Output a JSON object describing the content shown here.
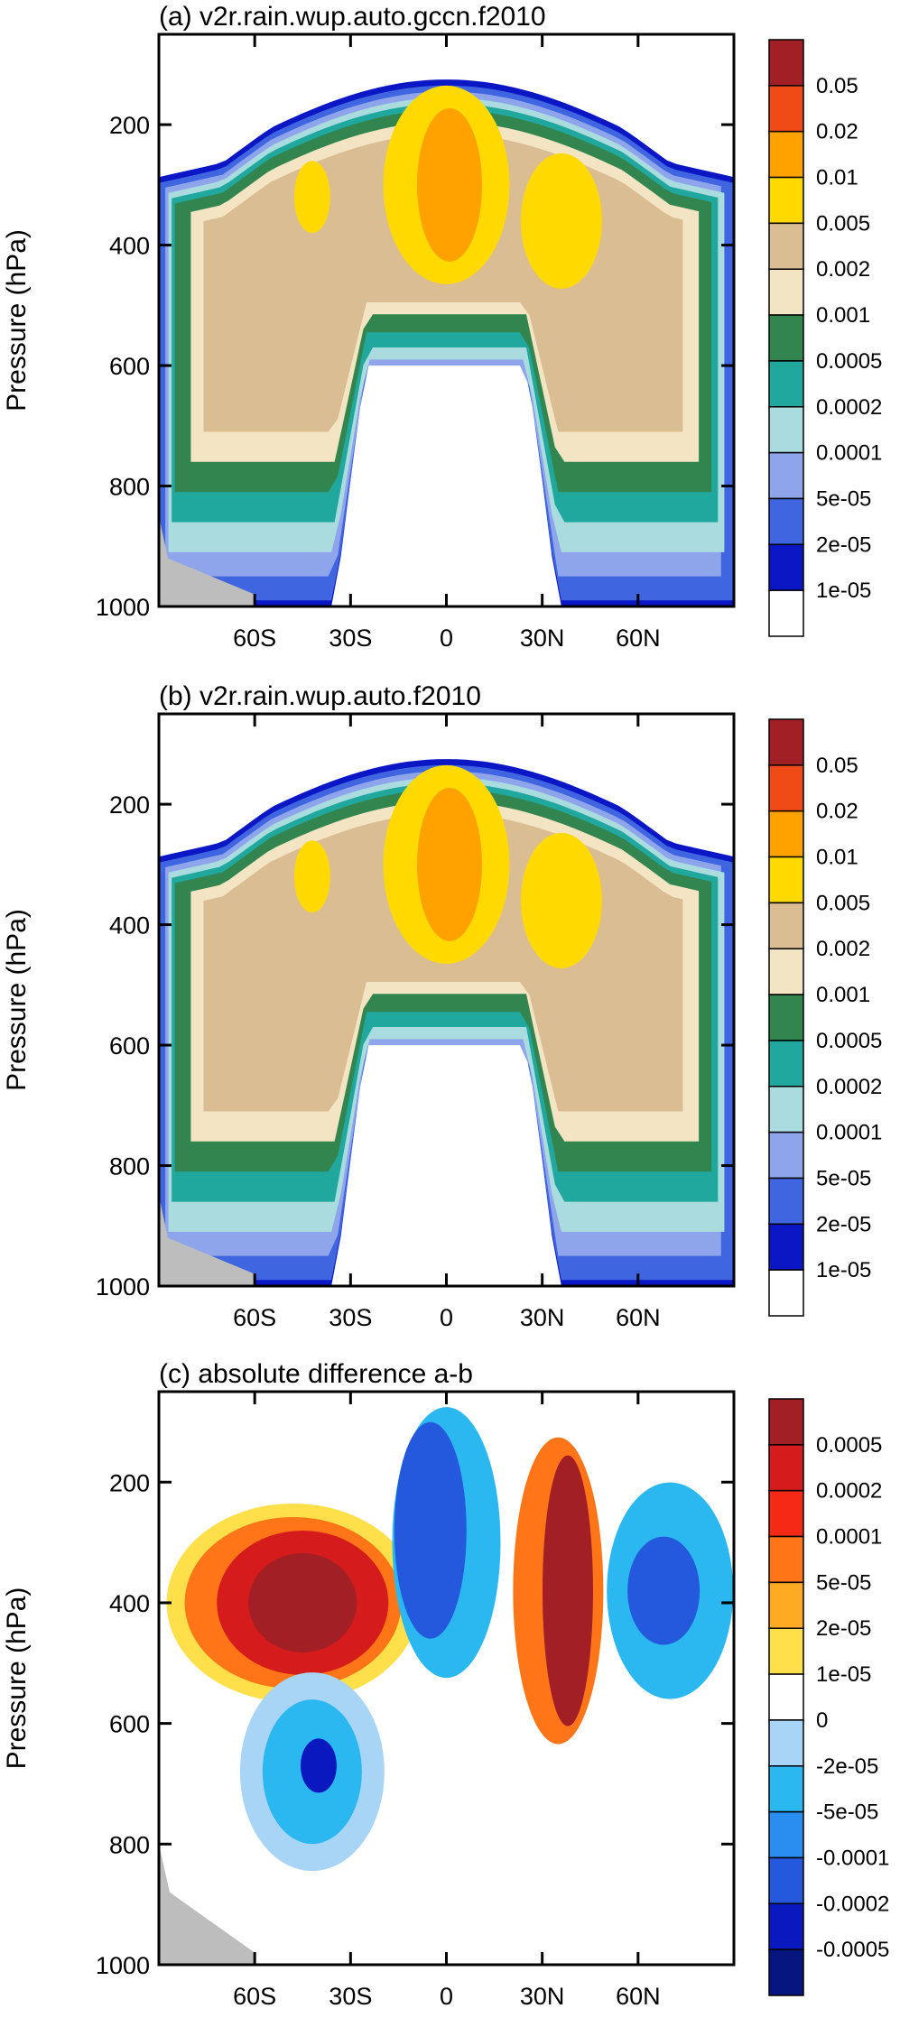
{
  "chart_data": [
    {
      "type": "filled-contour",
      "title": "(a) v2r.rain.wup.auto.gccn.f2010",
      "ylabel": "Pressure (hPa)",
      "y_ticks": [
        "200",
        "400",
        "600",
        "800",
        "1000"
      ],
      "x_ticks": [
        "60S",
        "30S",
        "0",
        "30N",
        "60N"
      ],
      "xlim": [
        -90,
        90
      ],
      "ylim": [
        1000,
        50
      ],
      "legend_labels": [
        "0.05",
        "0.02",
        "0.01",
        "0.005",
        "0.002",
        "0.001",
        "0.0005",
        "0.0002",
        "0.0001",
        "5e-05",
        "2e-05",
        "1e-05"
      ],
      "levels": [
        1e-05,
        2e-05,
        5e-05,
        0.0001,
        0.0002,
        0.0005,
        0.001,
        0.002,
        0.005,
        0.01,
        0.02,
        0.05
      ],
      "colors": [
        "#a21f25",
        "#f04b16",
        "#ffa200",
        "#ffd900",
        "#dbbd93",
        "#f3e5c3",
        "#33854f",
        "#21a89e",
        "#aadbdf",
        "#8fa5eb",
        "#3f65e0",
        "#0b16c4",
        "#ffffff"
      ]
    },
    {
      "type": "filled-contour",
      "title": "(b) v2r.rain.wup.auto.f2010",
      "ylabel": "Pressure (hPa)",
      "y_ticks": [
        "200",
        "400",
        "600",
        "800",
        "1000"
      ],
      "x_ticks": [
        "60S",
        "30S",
        "0",
        "30N",
        "60N"
      ],
      "xlim": [
        -90,
        90
      ],
      "ylim": [
        1000,
        50
      ],
      "legend_labels": [
        "0.05",
        "0.02",
        "0.01",
        "0.005",
        "0.002",
        "0.001",
        "0.0005",
        "0.0002",
        "0.0001",
        "5e-05",
        "2e-05",
        "1e-05"
      ],
      "levels": [
        1e-05,
        2e-05,
        5e-05,
        0.0001,
        0.0002,
        0.0005,
        0.001,
        0.002,
        0.005,
        0.01,
        0.02,
        0.05
      ],
      "colors": [
        "#a21f25",
        "#f04b16",
        "#ffa200",
        "#ffd900",
        "#dbbd93",
        "#f3e5c3",
        "#33854f",
        "#21a89e",
        "#aadbdf",
        "#8fa5eb",
        "#3f65e0",
        "#0b16c4",
        "#ffffff"
      ]
    },
    {
      "type": "filled-contour",
      "title": "(c) absolute difference a-b",
      "ylabel": "Pressure (hPa)",
      "y_ticks": [
        "200",
        "400",
        "600",
        "800",
        "1000"
      ],
      "x_ticks": [
        "60S",
        "30S",
        "0",
        "30N",
        "60N"
      ],
      "xlim": [
        -90,
        90
      ],
      "ylim": [
        1000,
        50
      ],
      "legend_labels": [
        "0.0005",
        "0.0002",
        "0.0001",
        "5e-05",
        "2e-05",
        "1e-05",
        "0",
        "-2e-05",
        "-5e-05",
        "-0.0001",
        "-0.0002",
        "-0.0005"
      ],
      "levels": [
        -0.0005,
        -0.0002,
        -0.0001,
        -5e-05,
        -2e-05,
        0,
        1e-05,
        2e-05,
        5e-05,
        0.0001,
        0.0002,
        0.0005
      ],
      "colors": [
        "#a21f25",
        "#d51b1b",
        "#f52a16",
        "#ff7518",
        "#ffaa22",
        "#ffe04a",
        "#ffffff",
        "#a8d4f5",
        "#2bb8f0",
        "#2a8ef0",
        "#2559dd",
        "#0a18c0",
        "#061580"
      ]
    }
  ]
}
